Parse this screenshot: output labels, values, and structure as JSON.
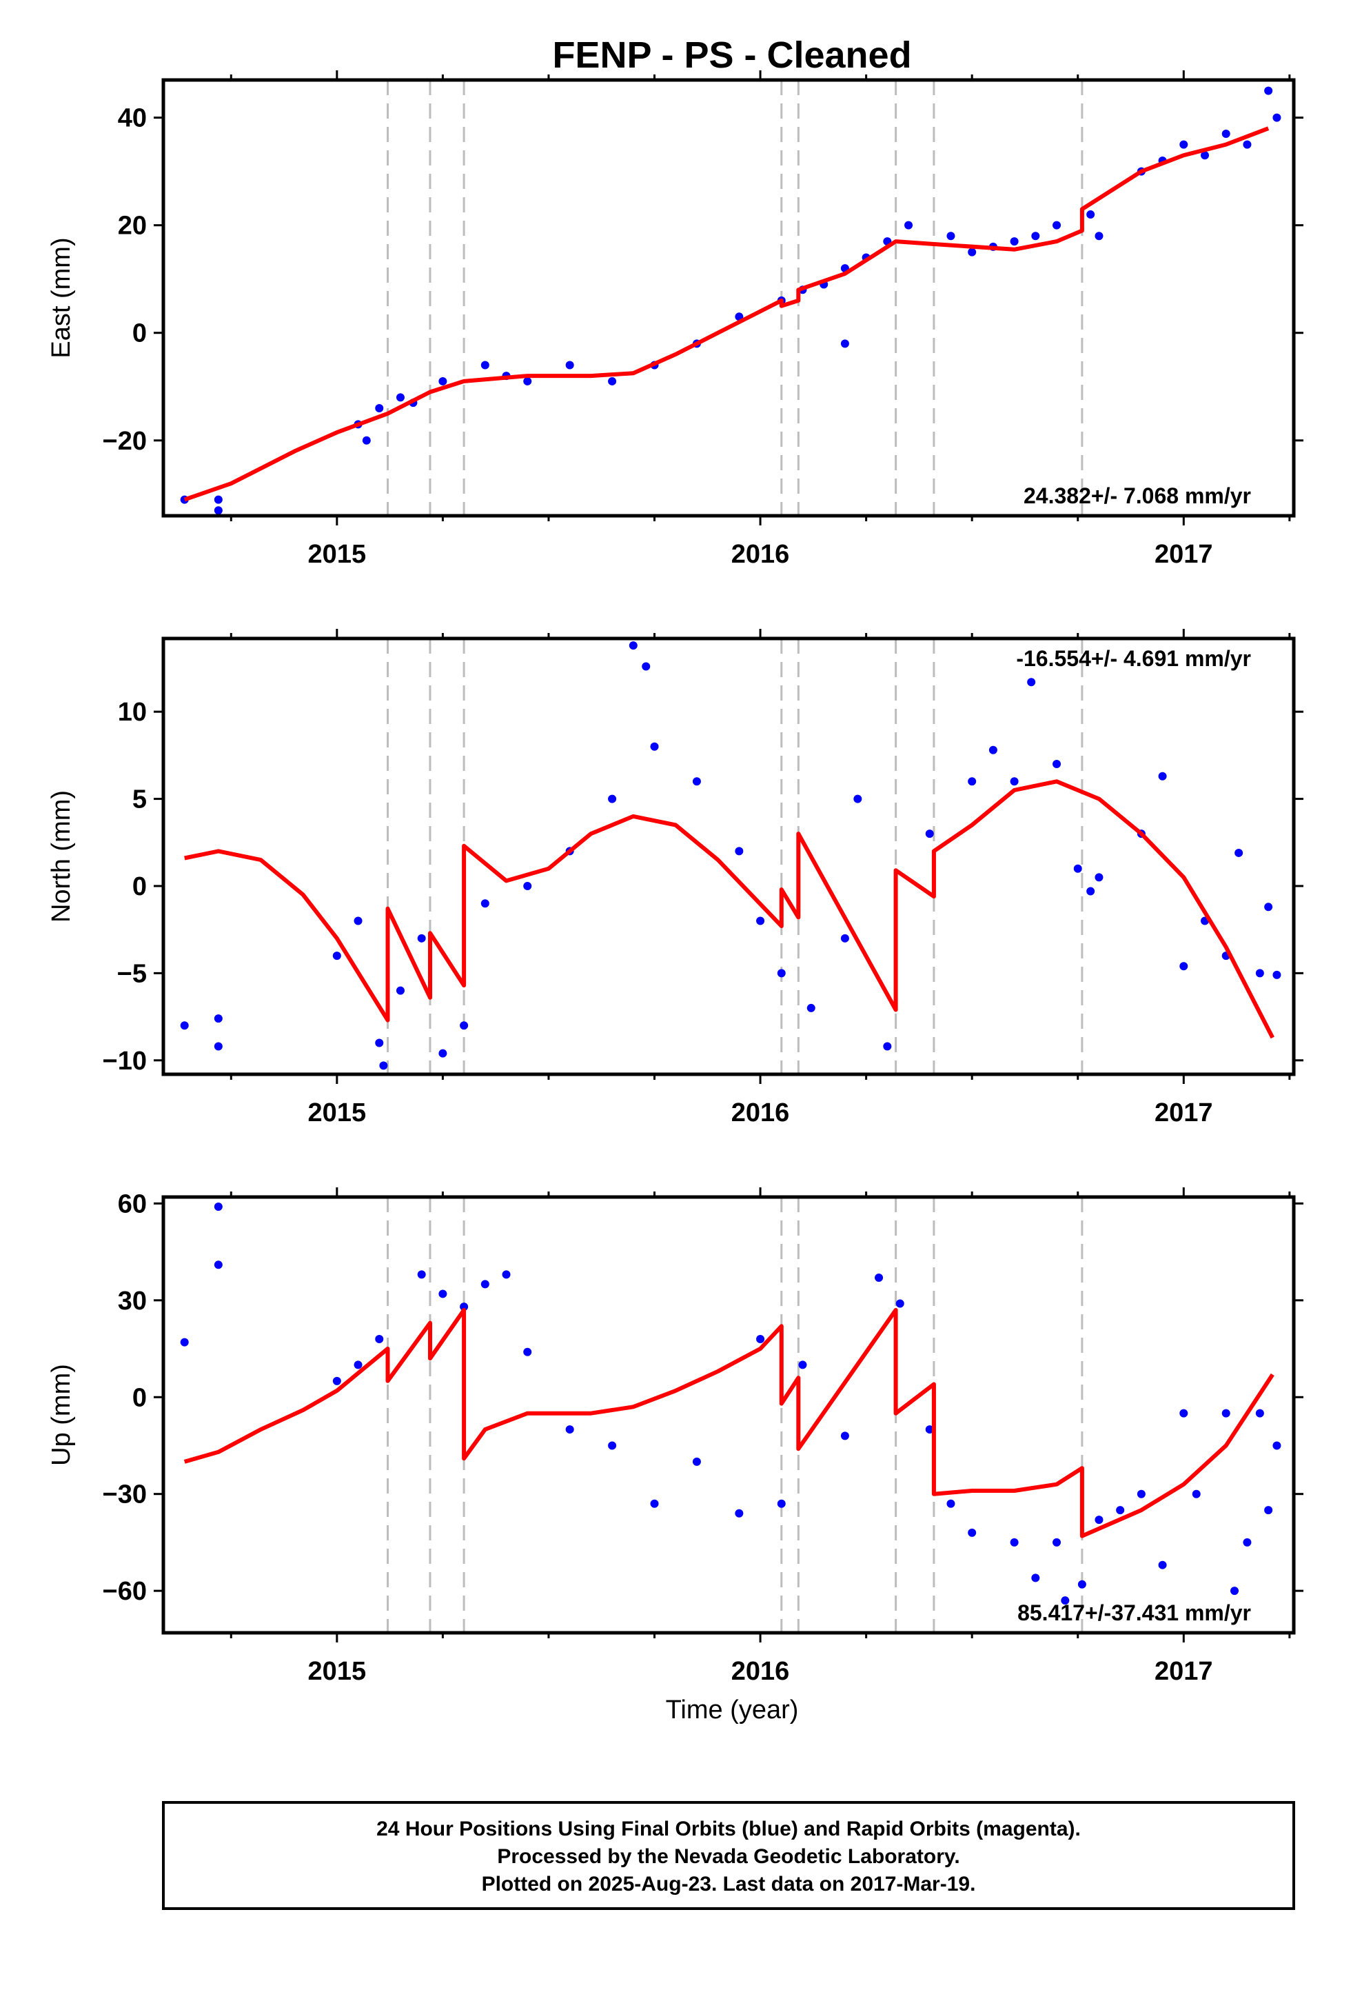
{
  "figure": {
    "title": "FENP  - PS - Cleaned",
    "xlabel": "Time (year)",
    "footer": [
      "24 Hour Positions Using Final Orbits (blue) and Rapid Orbits (magenta).",
      "Processed by the Nevada Geodetic Laboratory.",
      "Plotted on 2025-Aug-23. Last data on 2017-Mar-19."
    ]
  },
  "colors": {
    "points": "#0000ff",
    "model": "#ff0000",
    "events": "#bdbdbd",
    "frame": "#000000"
  },
  "chart_data": [
    {
      "type": "scatter",
      "ylabel": "East (mm)",
      "rate_label": "24.382+/- 7.068 mm/yr",
      "rate_position": "bottom-right",
      "xlim": [
        2014.59,
        2017.26
      ],
      "ylim": [
        -34,
        47
      ],
      "yticks": [
        -20,
        0,
        20,
        40
      ],
      "xticks": [
        2015,
        2016,
        2017
      ],
      "event_lines": [
        2015.12,
        2015.22,
        2015.3,
        2016.05,
        2016.09,
        2016.32,
        2016.41,
        2016.76
      ],
      "model": [
        [
          2014.64,
          -31
        ],
        [
          2014.75,
          -28
        ],
        [
          2014.9,
          -22
        ],
        [
          2015.0,
          -18.5
        ],
        [
          2015.12,
          -15
        ],
        [
          2015.22,
          -11
        ],
        [
          2015.3,
          -9
        ],
        [
          2015.45,
          -8
        ],
        [
          2015.6,
          -8
        ],
        [
          2015.7,
          -7.5
        ],
        [
          2015.8,
          -4
        ],
        [
          2015.9,
          0
        ],
        [
          2016.0,
          4
        ],
        [
          2016.05,
          6
        ],
        [
          2016.05,
          5
        ],
        [
          2016.09,
          6
        ],
        [
          2016.09,
          8
        ],
        [
          2016.2,
          11
        ],
        [
          2016.32,
          17
        ],
        [
          2016.41,
          16.5
        ],
        [
          2016.6,
          15.5
        ],
        [
          2016.7,
          17
        ],
        [
          2016.76,
          19
        ],
        [
          2016.76,
          23
        ],
        [
          2016.9,
          30
        ],
        [
          2017.0,
          33
        ],
        [
          2017.1,
          35
        ],
        [
          2017.2,
          38
        ]
      ],
      "points": [
        [
          2014.64,
          -31
        ],
        [
          2014.72,
          -31
        ],
        [
          2014.72,
          -33
        ],
        [
          2015.05,
          -17
        ],
        [
          2015.07,
          -20
        ],
        [
          2015.1,
          -14
        ],
        [
          2015.15,
          -12
        ],
        [
          2015.18,
          -13
        ],
        [
          2015.25,
          -9
        ],
        [
          2015.35,
          -6
        ],
        [
          2015.4,
          -8
        ],
        [
          2015.45,
          -9
        ],
        [
          2015.55,
          -6
        ],
        [
          2015.65,
          -9
        ],
        [
          2015.75,
          -6
        ],
        [
          2015.85,
          -2
        ],
        [
          2015.95,
          3
        ],
        [
          2016.05,
          6
        ],
        [
          2016.1,
          8
        ],
        [
          2016.15,
          9
        ],
        [
          2016.2,
          12
        ],
        [
          2016.25,
          14
        ],
        [
          2016.3,
          17
        ],
        [
          2016.2,
          -2
        ],
        [
          2016.35,
          20
        ],
        [
          2016.45,
          18
        ],
        [
          2016.5,
          15
        ],
        [
          2016.55,
          16
        ],
        [
          2016.6,
          17
        ],
        [
          2016.65,
          18
        ],
        [
          2016.7,
          20
        ],
        [
          2016.78,
          22
        ],
        [
          2016.8,
          18
        ],
        [
          2016.9,
          30
        ],
        [
          2016.95,
          32
        ],
        [
          2017.0,
          35
        ],
        [
          2017.05,
          33
        ],
        [
          2017.1,
          37
        ],
        [
          2017.15,
          35
        ],
        [
          2017.2,
          45
        ],
        [
          2017.22,
          40
        ]
      ]
    },
    {
      "type": "scatter",
      "ylabel": "North (mm)",
      "rate_label": "-16.554+/- 4.691 mm/yr",
      "rate_position": "top-right",
      "xlim": [
        2014.59,
        2017.26
      ],
      "ylim": [
        -10.8,
        14.2
      ],
      "yticks": [
        -10,
        -5,
        0,
        5,
        10
      ],
      "xticks": [
        2015,
        2016,
        2017
      ],
      "event_lines": [
        2015.12,
        2015.22,
        2015.3,
        2016.05,
        2016.09,
        2016.32,
        2016.41,
        2016.76
      ],
      "model": [
        [
          2014.64,
          1.6
        ],
        [
          2014.72,
          2.0
        ],
        [
          2014.82,
          1.5
        ],
        [
          2014.92,
          -0.5
        ],
        [
          2015.0,
          -3
        ],
        [
          2015.12,
          -7.7
        ],
        [
          2015.12,
          -1.3
        ],
        [
          2015.22,
          -6.4
        ],
        [
          2015.22,
          -2.7
        ],
        [
          2015.3,
          -5.7
        ],
        [
          2015.3,
          2.3
        ],
        [
          2015.4,
          0.3
        ],
        [
          2015.5,
          1.0
        ],
        [
          2015.6,
          3.0
        ],
        [
          2015.7,
          4.0
        ],
        [
          2015.8,
          3.5
        ],
        [
          2015.9,
          1.5
        ],
        [
          2016.05,
          -2.3
        ],
        [
          2016.05,
          -0.2
        ],
        [
          2016.09,
          -1.8
        ],
        [
          2016.09,
          3.0
        ],
        [
          2016.32,
          -7.1
        ],
        [
          2016.32,
          0.9
        ],
        [
          2016.41,
          -0.6
        ],
        [
          2016.41,
          2.0
        ],
        [
          2016.5,
          3.5
        ],
        [
          2016.6,
          5.5
        ],
        [
          2016.7,
          6.0
        ],
        [
          2016.8,
          5.0
        ],
        [
          2016.9,
          3.0
        ],
        [
          2017.0,
          0.5
        ],
        [
          2017.1,
          -3.5
        ],
        [
          2017.21,
          -8.7
        ]
      ],
      "points": [
        [
          2014.64,
          -8
        ],
        [
          2014.72,
          -7.6
        ],
        [
          2014.72,
          -9.2
        ],
        [
          2015.0,
          -4
        ],
        [
          2015.05,
          -2
        ],
        [
          2015.1,
          -9
        ],
        [
          2015.11,
          -10.3
        ],
        [
          2015.15,
          -6
        ],
        [
          2015.2,
          -3
        ],
        [
          2015.25,
          -9.6
        ],
        [
          2015.3,
          -8
        ],
        [
          2015.35,
          -1
        ],
        [
          2015.45,
          0
        ],
        [
          2015.55,
          2
        ],
        [
          2015.65,
          5
        ],
        [
          2015.7,
          13.8
        ],
        [
          2015.73,
          12.6
        ],
        [
          2015.75,
          8
        ],
        [
          2015.85,
          6
        ],
        [
          2015.95,
          2
        ],
        [
          2016.0,
          -2
        ],
        [
          2016.05,
          -5
        ],
        [
          2016.12,
          -7
        ],
        [
          2016.2,
          -3
        ],
        [
          2016.23,
          5
        ],
        [
          2016.3,
          -9.2
        ],
        [
          2016.4,
          3
        ],
        [
          2016.5,
          6
        ],
        [
          2016.55,
          7.8
        ],
        [
          2016.6,
          6
        ],
        [
          2016.64,
          11.7
        ],
        [
          2016.7,
          7
        ],
        [
          2016.75,
          1
        ],
        [
          2016.78,
          -0.3
        ],
        [
          2016.8,
          0.5
        ],
        [
          2016.9,
          3
        ],
        [
          2016.95,
          6.3
        ],
        [
          2017.0,
          -4.6
        ],
        [
          2017.05,
          -2
        ],
        [
          2017.1,
          -4
        ],
        [
          2017.13,
          1.9
        ],
        [
          2017.18,
          -5
        ],
        [
          2017.2,
          -1.2
        ],
        [
          2017.22,
          -5.1
        ]
      ]
    },
    {
      "type": "scatter",
      "ylabel": "Up (mm)",
      "rate_label": "85.417+/-37.431 mm/yr",
      "rate_position": "bottom-right",
      "xlim": [
        2014.59,
        2017.26
      ],
      "ylim": [
        -73,
        62
      ],
      "yticks": [
        -60,
        -30,
        0,
        30,
        60
      ],
      "xticks": [
        2015,
        2016,
        2017
      ],
      "event_lines": [
        2015.12,
        2015.22,
        2015.3,
        2016.05,
        2016.09,
        2016.32,
        2016.41,
        2016.76
      ],
      "model": [
        [
          2014.64,
          -20
        ],
        [
          2014.72,
          -17
        ],
        [
          2014.82,
          -10
        ],
        [
          2014.92,
          -4
        ],
        [
          2015.0,
          2
        ],
        [
          2015.12,
          15
        ],
        [
          2015.12,
          5
        ],
        [
          2015.22,
          23
        ],
        [
          2015.22,
          12
        ],
        [
          2015.3,
          27
        ],
        [
          2015.3,
          -19
        ],
        [
          2015.35,
          -10
        ],
        [
          2015.45,
          -5
        ],
        [
          2015.6,
          -5
        ],
        [
          2015.7,
          -3
        ],
        [
          2015.8,
          2
        ],
        [
          2015.9,
          8
        ],
        [
          2016.0,
          15
        ],
        [
          2016.05,
          22
        ],
        [
          2016.05,
          -2
        ],
        [
          2016.09,
          6
        ],
        [
          2016.09,
          -16
        ],
        [
          2016.32,
          27
        ],
        [
          2016.32,
          -5
        ],
        [
          2016.41,
          4
        ],
        [
          2016.41,
          -30
        ],
        [
          2016.5,
          -29
        ],
        [
          2016.6,
          -29
        ],
        [
          2016.7,
          -27
        ],
        [
          2016.76,
          -22
        ],
        [
          2016.76,
          -43
        ],
        [
          2016.9,
          -35
        ],
        [
          2017.0,
          -27
        ],
        [
          2017.1,
          -15
        ],
        [
          2017.21,
          7
        ]
      ],
      "points": [
        [
          2014.64,
          17
        ],
        [
          2014.72,
          59
        ],
        [
          2014.72,
          41
        ],
        [
          2015.0,
          5
        ],
        [
          2015.05,
          10
        ],
        [
          2015.1,
          18
        ],
        [
          2015.2,
          38
        ],
        [
          2015.25,
          32
        ],
        [
          2015.3,
          28
        ],
        [
          2015.35,
          35
        ],
        [
          2015.4,
          38
        ],
        [
          2015.45,
          14
        ],
        [
          2015.55,
          -10
        ],
        [
          2015.65,
          -15
        ],
        [
          2015.75,
          -33
        ],
        [
          2015.85,
          -20
        ],
        [
          2015.95,
          -36
        ],
        [
          2016.0,
          18
        ],
        [
          2016.05,
          -33
        ],
        [
          2016.1,
          10
        ],
        [
          2016.2,
          -12
        ],
        [
          2016.28,
          37
        ],
        [
          2016.33,
          29
        ],
        [
          2016.4,
          -10
        ],
        [
          2016.45,
          -33
        ],
        [
          2016.5,
          -42
        ],
        [
          2016.6,
          -45
        ],
        [
          2016.65,
          -56
        ],
        [
          2016.7,
          -45
        ],
        [
          2016.72,
          -63
        ],
        [
          2016.76,
          -58
        ],
        [
          2016.8,
          -38
        ],
        [
          2016.85,
          -35
        ],
        [
          2016.9,
          -30
        ],
        [
          2016.95,
          -52
        ],
        [
          2017.0,
          -5
        ],
        [
          2017.03,
          -30
        ],
        [
          2017.1,
          -5
        ],
        [
          2017.12,
          -60
        ],
        [
          2017.15,
          -45
        ],
        [
          2017.18,
          -5
        ],
        [
          2017.2,
          -35
        ],
        [
          2017.22,
          -15
        ]
      ]
    }
  ]
}
